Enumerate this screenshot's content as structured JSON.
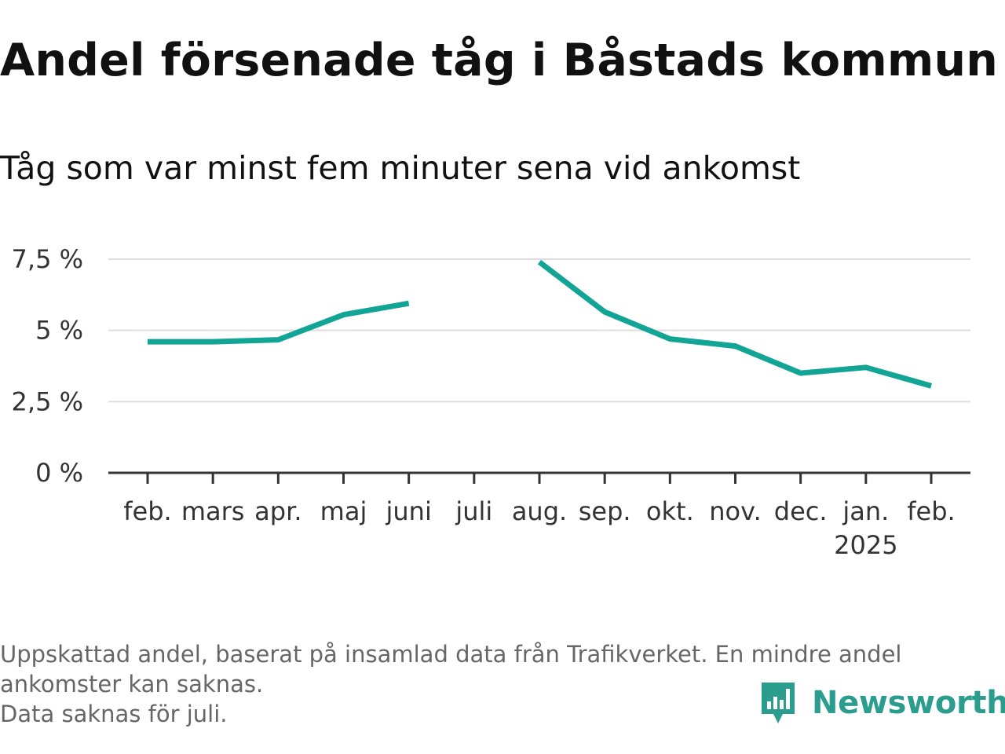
{
  "chart_data": {
    "type": "line",
    "title": "Andel försenade tåg i Båstads kommun",
    "subtitle": "Tåg som var minst fem minuter sena vid ankomst",
    "categories": [
      "feb.",
      "mars",
      "apr.",
      "maj",
      "juni",
      "juli",
      "aug.",
      "sep.",
      "okt.",
      "nov.",
      "dec.",
      "jan.",
      "feb."
    ],
    "category_sublabels": [
      "",
      "",
      "",
      "",
      "",
      "",
      "",
      "",
      "",
      "",
      "",
      "2025",
      ""
    ],
    "series": [
      {
        "name": "",
        "values": [
          4.6,
          4.6,
          4.67,
          5.55,
          5.95,
          null,
          7.4,
          5.65,
          4.7,
          4.45,
          3.5,
          3.7,
          3.05
        ]
      }
    ],
    "ylim": [
      0,
      7.5
    ],
    "yticks": [
      0,
      2.5,
      5,
      7.5
    ],
    "ytick_labels": [
      "0 %",
      "2,5 %",
      "5 %",
      "7,5 %"
    ],
    "grid": true,
    "line_color": "#12a596"
  },
  "footnote": {
    "line1": "Uppskattad andel, baserat på insamlad data från Trafikverket. En mindre andel",
    "line2": "ankomster kan saknas.",
    "line3": "Data saknas för juli."
  },
  "brand": {
    "name": "Newsworthy",
    "icon": "bar-chart-speech-bubble-icon",
    "color": "#2a9d8f"
  }
}
